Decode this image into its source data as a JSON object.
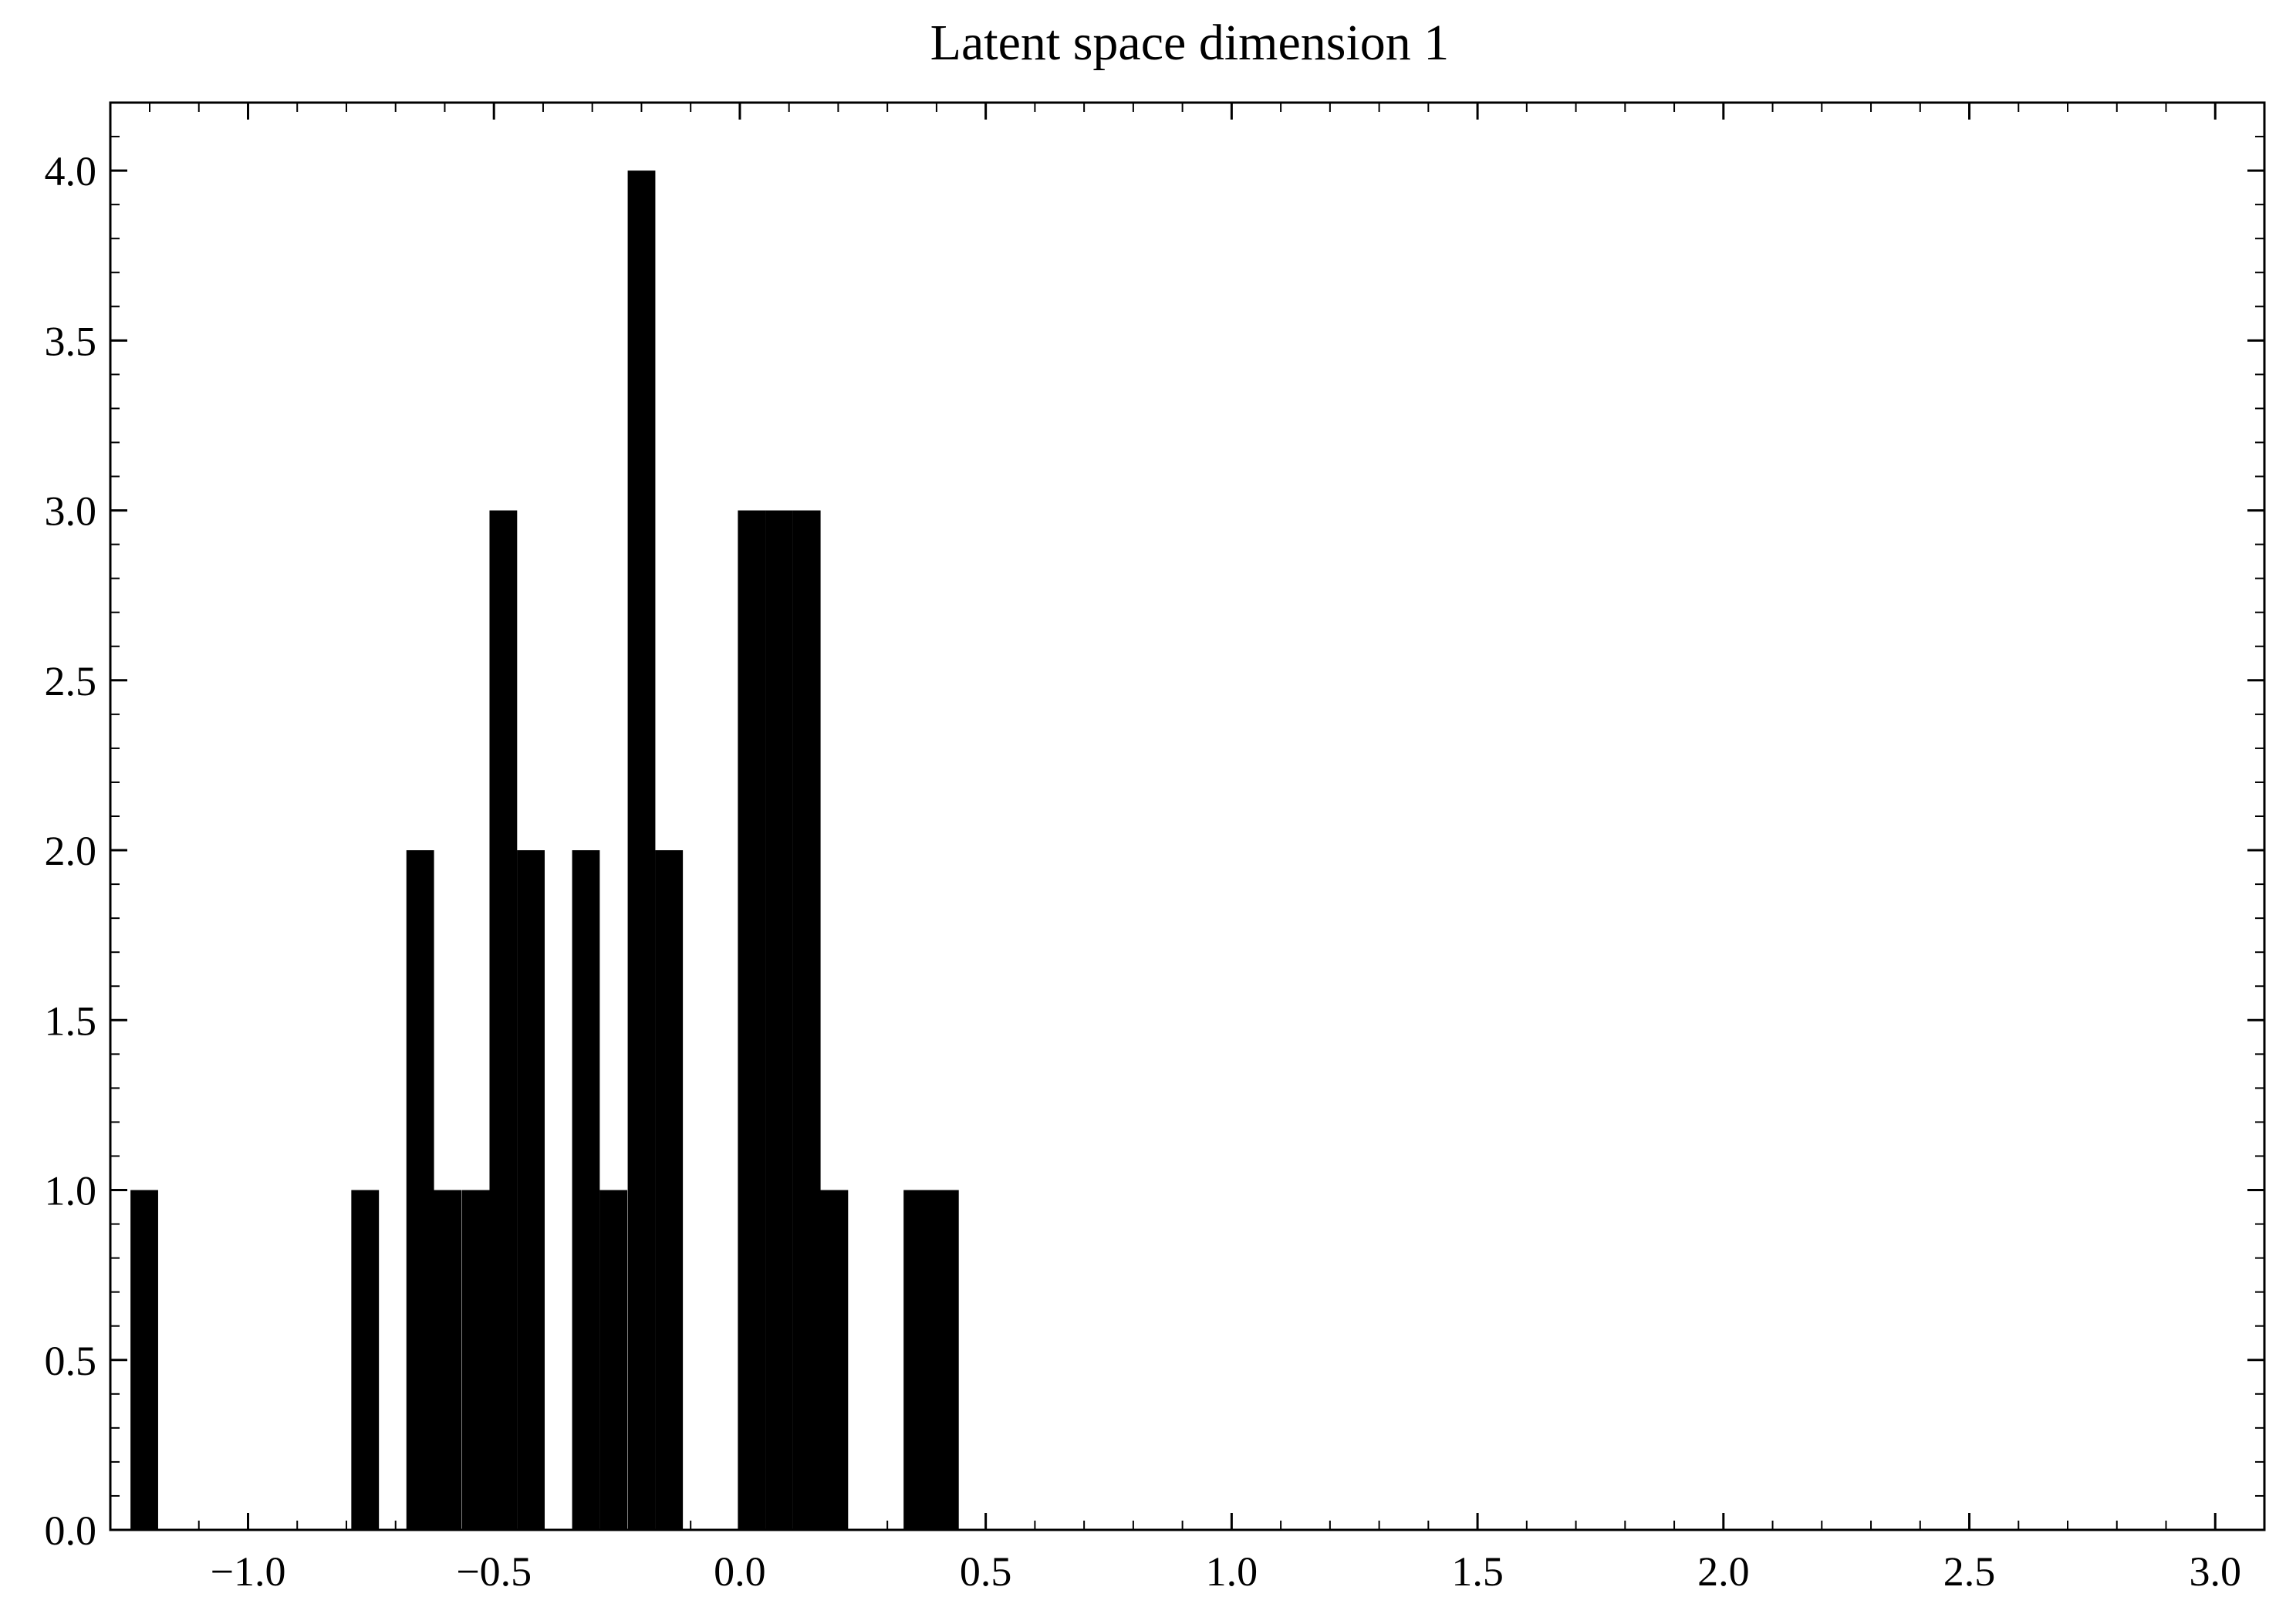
{
  "chart_data": {
    "type": "bar",
    "title": "Latent space dimension 1",
    "xlabel": "",
    "ylabel": "",
    "xlim": [
      -1.28,
      3.1
    ],
    "ylim": [
      0,
      4.2
    ],
    "grid": false,
    "bin_width": 0.0562,
    "bars": [
      {
        "x": -1.239,
        "value": 1
      },
      {
        "x": -0.79,
        "value": 1
      },
      {
        "x": -0.678,
        "value": 2
      },
      {
        "x": -0.622,
        "value": 1
      },
      {
        "x": -0.565,
        "value": 1
      },
      {
        "x": -0.509,
        "value": 3
      },
      {
        "x": -0.453,
        "value": 2
      },
      {
        "x": -0.341,
        "value": 2
      },
      {
        "x": -0.285,
        "value": 1
      },
      {
        "x": -0.228,
        "value": 4
      },
      {
        "x": -0.172,
        "value": 2
      },
      {
        "x": -0.06,
        "value": 0
      },
      {
        "x": -0.004,
        "value": 3
      },
      {
        "x": 0.052,
        "value": 3
      },
      {
        "x": 0.108,
        "value": 3
      },
      {
        "x": 0.164,
        "value": 1
      },
      {
        "x": 0.333,
        "value": 1
      },
      {
        "x": 0.389,
        "value": 1
      }
    ],
    "x_ticks": [
      {
        "value": -1.0,
        "label": "−1.0"
      },
      {
        "value": -0.5,
        "label": "−0.5"
      },
      {
        "value": 0.0,
        "label": "0.0"
      },
      {
        "value": 0.5,
        "label": "0.5"
      },
      {
        "value": 1.0,
        "label": "1.0"
      },
      {
        "value": 1.5,
        "label": "1.5"
      },
      {
        "value": 2.0,
        "label": "2.0"
      },
      {
        "value": 2.5,
        "label": "2.5"
      },
      {
        "value": 3.0,
        "label": "3.0"
      }
    ],
    "y_ticks": [
      {
        "value": 0.0,
        "label": "0.0"
      },
      {
        "value": 0.5,
        "label": "0.5"
      },
      {
        "value": 1.0,
        "label": "1.0"
      },
      {
        "value": 1.5,
        "label": "1.5"
      },
      {
        "value": 2.0,
        "label": "2.0"
      },
      {
        "value": 2.5,
        "label": "2.5"
      },
      {
        "value": 3.0,
        "label": "3.0"
      },
      {
        "value": 3.5,
        "label": "3.5"
      },
      {
        "value": 4.0,
        "label": "4.0"
      }
    ],
    "x_minor_step": 0.1,
    "y_minor_step": 0.1,
    "bar_color": "#000000"
  }
}
